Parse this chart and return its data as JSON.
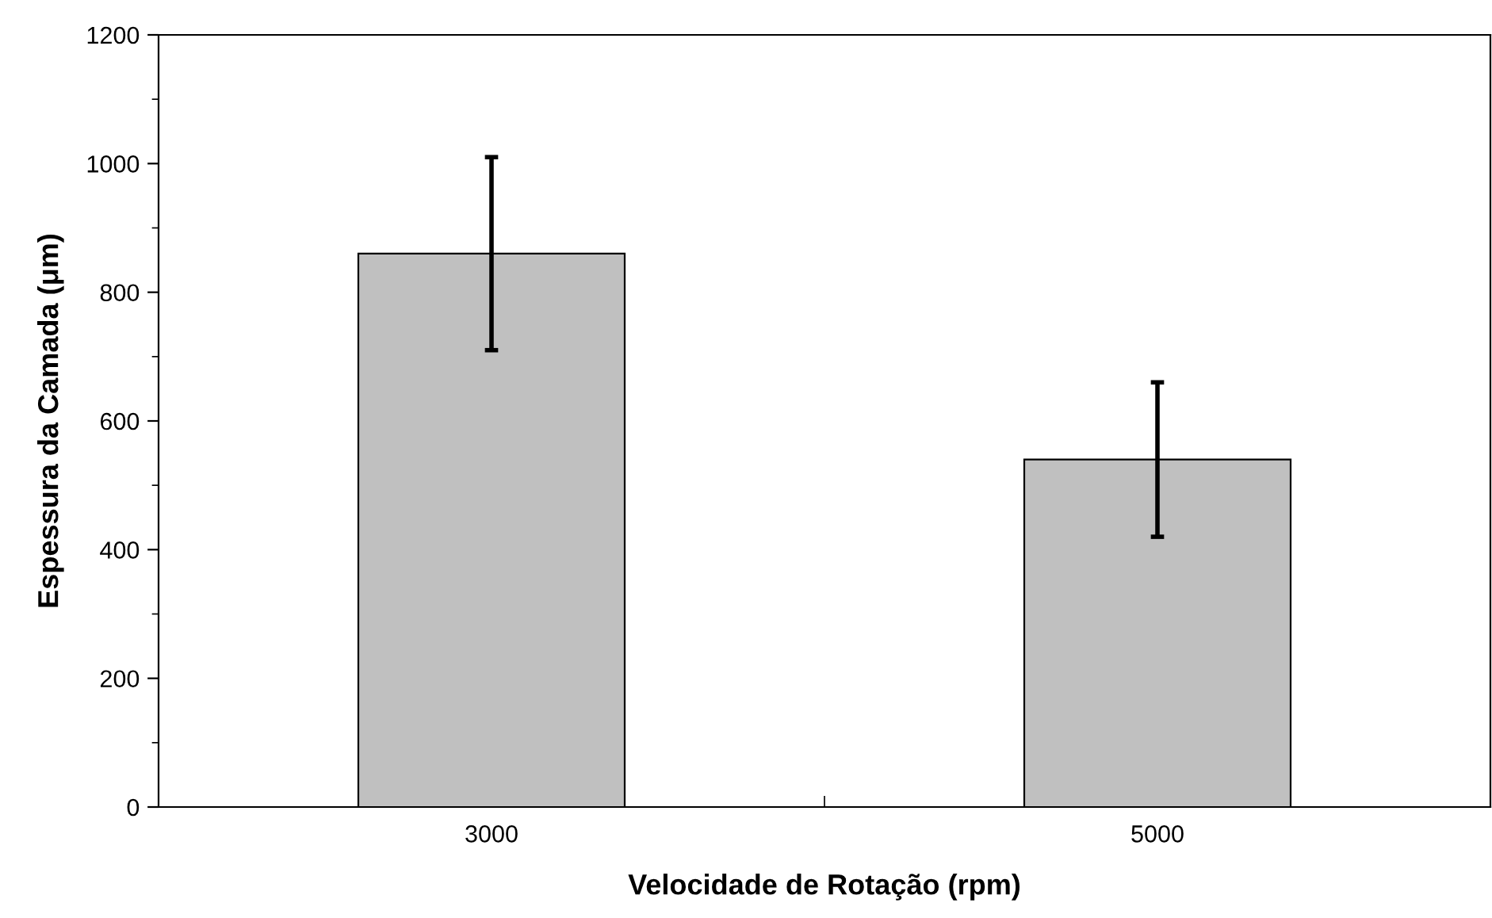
{
  "chart_data": {
    "type": "bar",
    "xlabel": "Velocidade de Rotação (rpm)",
    "ylabel": "Espessura da Camada (μm)",
    "categories": [
      "3000",
      "5000"
    ],
    "series": [
      {
        "color": "#c0c0c0",
        "values": [
          860,
          540
        ],
        "errors": [
          150,
          120
        ]
      }
    ],
    "ylim": [
      0,
      1200
    ],
    "yticks": [
      0,
      200,
      400,
      600,
      800,
      1000,
      1200
    ],
    "grid": false,
    "legend": false
  }
}
